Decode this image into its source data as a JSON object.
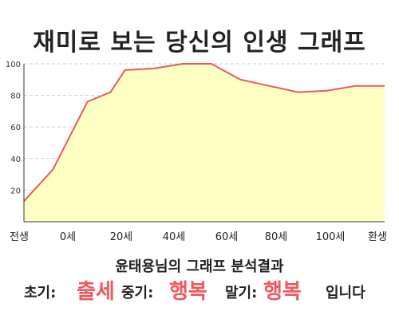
{
  "title": "재미로 보는 당신의 인생 그래프",
  "chart_data": {
    "type": "area",
    "x": [
      -10,
      0,
      12,
      20,
      25,
      35,
      45,
      55,
      65,
      75,
      85,
      95,
      105,
      115
    ],
    "values": [
      13,
      33,
      76,
      82,
      96,
      97,
      100,
      100,
      90,
      86,
      82,
      83,
      86,
      86
    ],
    "xlim": [
      -10,
      115
    ],
    "ylim": [
      0,
      100
    ],
    "xticks": [
      "전생",
      "0세",
      "20세",
      "40세",
      "60세",
      "80세",
      "100세",
      "환생"
    ],
    "yticks": [
      20,
      40,
      60,
      80,
      100
    ],
    "grid": true,
    "fill_color": "#ffffc4",
    "line_color": "#e85a5e",
    "grid_color": "#cccccc"
  },
  "summary": {
    "heading": "윤태용님의 그래프 분석결과",
    "early_label": "초기:",
    "early_value": "출세",
    "middle_label": "중기:",
    "middle_value": "행복",
    "late_label": "말기:",
    "late_value": "행복",
    "ending": "입니다"
  }
}
